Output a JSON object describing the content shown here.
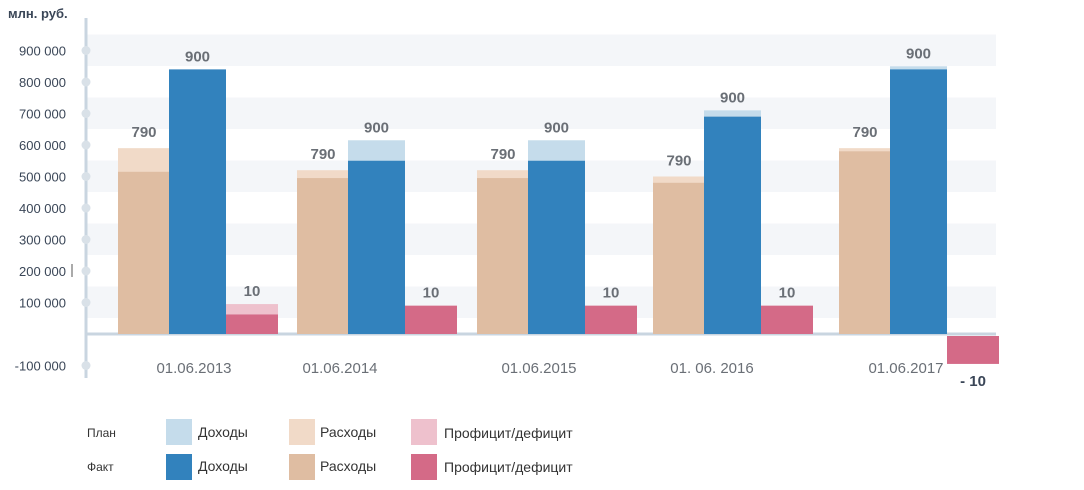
{
  "chart_data": {
    "type": "bar",
    "unit_label": "млн. руб.",
    "y_ticks": [
      "900 000",
      "800 000",
      "700 000",
      "600 000",
      "500 000",
      "400 000",
      "300 000",
      "200 000",
      "100 000",
      "-100 000"
    ],
    "y_tick_values": [
      900000,
      800000,
      700000,
      600000,
      500000,
      400000,
      300000,
      200000,
      100000,
      -100000
    ],
    "ylim": [
      -100000,
      900000
    ],
    "categories": [
      "01.06.2013",
      "01.06.2014",
      "01.06.2015",
      "01. 06. 2016",
      "01.06.2017"
    ],
    "series": [
      {
        "name": "Расходы",
        "kind": "plan",
        "values": [
          590000,
          520000,
          520000,
          500000,
          590000
        ],
        "labels": [
          "790",
          "790",
          "790",
          "790",
          "790"
        ]
      },
      {
        "name": "Расходы",
        "kind": "fact",
        "values": [
          515000,
          495000,
          495000,
          480000,
          580000
        ],
        "labels": null
      },
      {
        "name": "Доходы",
        "kind": "plan",
        "values": [
          840000,
          615000,
          615000,
          710000,
          850000
        ],
        "labels": [
          "900",
          "900",
          "900",
          "900",
          "900"
        ]
      },
      {
        "name": "Доходы",
        "kind": "fact",
        "values": [
          840000,
          550000,
          550000,
          690000,
          840000
        ],
        "labels": null
      },
      {
        "name": "Профицит/дефицит",
        "kind": "plan",
        "values": [
          95000,
          0,
          0,
          0,
          0
        ],
        "labels": null
      },
      {
        "name": "Профицит/дефицит",
        "kind": "fact",
        "values": [
          62000,
          90000,
          90000,
          90000,
          -95000
        ],
        "labels": [
          "10",
          "10",
          "10",
          "10",
          "- 10"
        ]
      }
    ],
    "grid": "horizontal bands",
    "legend_position": "bottom-left"
  },
  "legend": {
    "plan_label": "План",
    "fact_label": "Факт",
    "items": [
      "Доходы",
      "Расходы",
      "Профицит/дефицит"
    ]
  },
  "colors": {
    "income_plan": "#c5dceb",
    "income_fact": "#3282bd",
    "expense_plan": "#f1dac8",
    "expense_fact": "#dfbda2",
    "surplus_plan": "#eec1cd",
    "surplus_fact": "#d46a87",
    "axis": "#c9d5e0",
    "band": "#f4f6f9",
    "tick_text": "#3a4657",
    "label_text": "#6a6f76"
  }
}
